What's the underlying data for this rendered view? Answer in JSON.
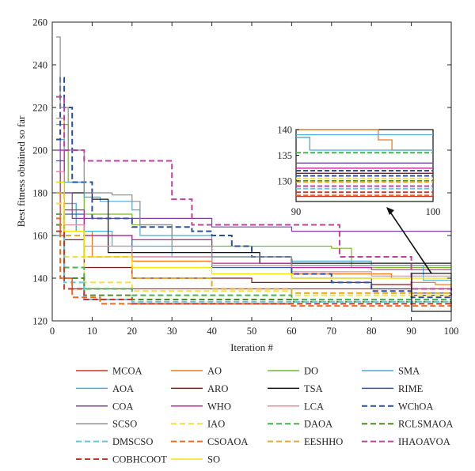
{
  "chart_data": {
    "type": "line",
    "xlabel": "Iteration #",
    "ylabel": "Best fitness obtained so far",
    "xlim": [
      0,
      100
    ],
    "ylim": [
      120,
      260
    ],
    "x_ticks": [
      "0",
      "10",
      "20",
      "30",
      "40",
      "50",
      "60",
      "70",
      "80",
      "90",
      "100"
    ],
    "y_ticks": [
      "120",
      "140",
      "160",
      "180",
      "200",
      "220",
      "240",
      "260"
    ],
    "grid": false,
    "legend_position": "bottom",
    "series": [
      {
        "name": "MCOA",
        "color": "#d7301f",
        "dash": "solid",
        "points": [
          [
            1,
            190
          ],
          [
            2,
            160
          ],
          [
            3,
            140
          ],
          [
            5,
            135
          ],
          [
            100,
            135
          ]
        ]
      },
      {
        "name": "AO",
        "color": "#f47b20",
        "dash": "solid",
        "points": [
          [
            1,
            215
          ],
          [
            3,
            175
          ],
          [
            6,
            162
          ],
          [
            10,
            150
          ],
          [
            20,
            148
          ],
          [
            40,
            146
          ],
          [
            60,
            142
          ],
          [
            85,
            140
          ],
          [
            90,
            138
          ],
          [
            96,
            137
          ],
          [
            100,
            135
          ]
        ]
      },
      {
        "name": "DO",
        "color": "#77b82a",
        "dash": "solid",
        "points": [
          [
            1,
            212
          ],
          [
            4,
            185
          ],
          [
            8,
            170
          ],
          [
            20,
            165
          ],
          [
            30,
            158
          ],
          [
            40,
            155
          ],
          [
            70,
            154
          ],
          [
            75,
            145
          ],
          [
            90,
            145
          ],
          [
            100,
            145
          ]
        ]
      },
      {
        "name": "SMA",
        "color": "#4aa8e0",
        "dash": "solid",
        "points": [
          [
            1,
            205
          ],
          [
            3,
            185
          ],
          [
            8,
            178
          ],
          [
            12,
            176
          ],
          [
            20,
            172
          ],
          [
            22,
            160
          ],
          [
            40,
            150
          ],
          [
            60,
            148
          ],
          [
            80,
            146
          ],
          [
            90,
            146
          ],
          [
            93,
            139
          ],
          [
            100,
            139
          ]
        ]
      },
      {
        "name": "AOA",
        "color": "#35b7e5",
        "dash": "solid",
        "points": [
          [
            1,
            200
          ],
          [
            3,
            175
          ],
          [
            6,
            162
          ],
          [
            15,
            155
          ],
          [
            30,
            150
          ],
          [
            60,
            146
          ],
          [
            100,
            146
          ]
        ]
      },
      {
        "name": "ARO",
        "color": "#8b1a1a",
        "dash": "solid",
        "points": [
          [
            1,
            185
          ],
          [
            3,
            158
          ],
          [
            8,
            145
          ],
          [
            20,
            140
          ],
          [
            50,
            138
          ],
          [
            80,
            137
          ],
          [
            90,
            132
          ],
          [
            100,
            132
          ]
        ]
      },
      {
        "name": "TSA",
        "color": "#111111",
        "dash": "solid",
        "points": [
          [
            1,
            180
          ],
          [
            10,
            177
          ],
          [
            14,
            152
          ],
          [
            50,
            152
          ],
          [
            52,
            147
          ],
          [
            100,
            147
          ]
        ]
      },
      {
        "name": "RIME",
        "color": "#2a5caa",
        "dash": "solid",
        "points": [
          [
            1,
            195
          ],
          [
            3,
            170
          ],
          [
            8,
            160
          ],
          [
            20,
            150
          ],
          [
            40,
            145
          ],
          [
            60,
            140
          ],
          [
            80,
            135
          ],
          [
            90,
            133
          ],
          [
            100,
            133
          ]
        ]
      },
      {
        "name": "COA",
        "color": "#7b3fa0",
        "dash": "solid",
        "points": [
          [
            1,
            205
          ],
          [
            2,
            180
          ],
          [
            5,
            168
          ],
          [
            30,
            168
          ],
          [
            40,
            164
          ],
          [
            60,
            162
          ],
          [
            100,
            162
          ]
        ]
      },
      {
        "name": "WHO",
        "color": "#c0209a",
        "dash": "solid",
        "points": [
          [
            1,
            200
          ],
          [
            3,
            172
          ],
          [
            8,
            160
          ],
          [
            20,
            158
          ],
          [
            40,
            147
          ],
          [
            60,
            145
          ],
          [
            80,
            144
          ],
          [
            100,
            144
          ]
        ]
      },
      {
        "name": "LCA",
        "color": "#e98a9a",
        "dash": "solid",
        "points": [
          [
            1,
            190
          ],
          [
            3,
            165
          ],
          [
            8,
            155
          ],
          [
            20,
            150
          ],
          [
            40,
            146
          ],
          [
            60,
            143
          ],
          [
            80,
            141
          ],
          [
            100,
            141
          ]
        ]
      },
      {
        "name": "WChOA",
        "color": "#2a4fa0",
        "dash": "dashed",
        "points": [
          [
            1,
            205
          ],
          [
            2,
            234
          ],
          [
            3,
            220
          ],
          [
            5,
            185
          ],
          [
            10,
            168
          ],
          [
            20,
            164
          ],
          [
            30,
            164
          ],
          [
            35,
            162
          ],
          [
            40,
            160
          ],
          [
            45,
            155
          ],
          [
            50,
            150
          ],
          [
            60,
            142
          ],
          [
            70,
            138
          ],
          [
            80,
            134
          ],
          [
            90,
            131
          ],
          [
            100,
            131
          ]
        ]
      },
      {
        "name": "SCSO",
        "color": "#8c8c8c",
        "dash": "solid",
        "points": [
          [
            1,
            253
          ],
          [
            2,
            220
          ],
          [
            4,
            200
          ],
          [
            8,
            180
          ],
          [
            15,
            179
          ],
          [
            20,
            176
          ],
          [
            22,
            165
          ],
          [
            30,
            155
          ],
          [
            40,
            150
          ],
          [
            60,
            146
          ],
          [
            100,
            146
          ]
        ]
      },
      {
        "name": "IAO",
        "color": "#f0e040",
        "dash": "dashed",
        "points": [
          [
            1,
            175
          ],
          [
            3,
            150
          ],
          [
            8,
            138
          ],
          [
            20,
            134
          ],
          [
            60,
            132
          ],
          [
            100,
            132
          ]
        ]
      },
      {
        "name": "DAOA",
        "color": "#4caf50",
        "dash": "dashed",
        "points": [
          [
            1,
            170
          ],
          [
            3,
            145
          ],
          [
            8,
            135
          ],
          [
            20,
            132
          ],
          [
            60,
            130
          ],
          [
            100,
            130
          ]
        ]
      },
      {
        "name": "RCLSMAOA",
        "color": "#4f8a2a",
        "dash": "dashed",
        "points": [
          [
            1,
            165
          ],
          [
            3,
            140
          ],
          [
            8,
            132
          ],
          [
            20,
            130
          ],
          [
            60,
            129
          ],
          [
            100,
            129
          ]
        ]
      },
      {
        "name": "DMSCSO",
        "color": "#5bc8e8",
        "dash": "dashed",
        "points": [
          [
            1,
            160
          ],
          [
            3,
            138
          ],
          [
            8,
            130
          ],
          [
            20,
            129
          ],
          [
            60,
            129
          ],
          [
            100,
            128
          ]
        ]
      },
      {
        "name": "CSOAOA",
        "color": "#f06a20",
        "dash": "dashed",
        "points": [
          [
            1,
            168
          ],
          [
            2,
            140
          ],
          [
            5,
            131
          ],
          [
            12,
            128
          ],
          [
            60,
            127
          ],
          [
            100,
            127
          ]
        ]
      },
      {
        "name": "EESHHO",
        "color": "#e6a830",
        "dash": "dashed",
        "points": [
          [
            1,
            180
          ],
          [
            3,
            160
          ],
          [
            8,
            150
          ],
          [
            20,
            140
          ],
          [
            40,
            135
          ],
          [
            60,
            133
          ],
          [
            100,
            133
          ]
        ]
      },
      {
        "name": "IHAOAVOA",
        "color": "#c040a0",
        "dash": "dashed",
        "points": [
          [
            1,
            225
          ],
          [
            3,
            200
          ],
          [
            8,
            195
          ],
          [
            28,
            195
          ],
          [
            30,
            177
          ],
          [
            35,
            165
          ],
          [
            70,
            165
          ],
          [
            72,
            150
          ],
          [
            90,
            135
          ],
          [
            100,
            132
          ]
        ]
      },
      {
        "name": "COBHCOOT",
        "color": "#c0392b",
        "dash": "dashed",
        "points": [
          [
            1,
            162
          ],
          [
            3,
            135
          ],
          [
            8,
            130
          ],
          [
            20,
            128
          ],
          [
            60,
            128
          ],
          [
            100,
            127
          ]
        ]
      },
      {
        "name": "SO",
        "color": "#f5e300",
        "dash": "solid",
        "points": [
          [
            1,
            185
          ],
          [
            3,
            162
          ],
          [
            8,
            150
          ],
          [
            20,
            145
          ],
          [
            40,
            142
          ],
          [
            60,
            140
          ],
          [
            100,
            139
          ]
        ]
      }
    ],
    "inset": {
      "xlim": [
        90,
        100
      ],
      "ylim": [
        126,
        140
      ],
      "x_ticks": [
        "90",
        "100"
      ],
      "y_ticks": [
        "130",
        "135",
        "140"
      ],
      "lines": [
        {
          "color": "#f47b20",
          "dash": "solid",
          "points": [
            [
              90,
              140
            ],
            [
              96,
              138
            ],
            [
              97,
              136
            ],
            [
              100,
              136
            ]
          ]
        },
        {
          "color": "#4aa8e0",
          "dash": "solid",
          "points": [
            [
              90,
              139
            ],
            [
              100,
              139
            ]
          ]
        },
        {
          "color": "#4aa8e0",
          "dash": "solid",
          "points": [
            [
              90,
              138.5
            ],
            [
              91,
              136
            ],
            [
              100,
              136
            ]
          ]
        },
        {
          "color": "#4caf50",
          "dash": "dashed",
          "points": [
            [
              90,
              135.5
            ],
            [
              100,
              135.5
            ]
          ]
        },
        {
          "color": "#7b3fa0",
          "dash": "solid",
          "points": [
            [
              90,
              133.5
            ],
            [
              100,
              133.5
            ]
          ]
        },
        {
          "color": "#c0209a",
          "dash": "solid",
          "points": [
            [
              90,
              132.5
            ],
            [
              100,
              132.5
            ]
          ]
        },
        {
          "color": "#2a4fa0",
          "dash": "dashed",
          "points": [
            [
              90,
              132
            ],
            [
              100,
              132
            ]
          ]
        },
        {
          "color": "#8b1a1a",
          "dash": "solid",
          "points": [
            [
              90,
              131.5
            ],
            [
              100,
              131.5
            ]
          ]
        },
        {
          "color": "#2a4fa0",
          "dash": "dashed",
          "points": [
            [
              90,
              131
            ],
            [
              100,
              131
            ]
          ]
        },
        {
          "color": "#f0e040",
          "dash": "dashed",
          "points": [
            [
              90,
              130.5
            ],
            [
              100,
              130.5
            ]
          ]
        },
        {
          "color": "#4f8a2a",
          "dash": "dashed",
          "points": [
            [
              90,
              130
            ],
            [
              100,
              130
            ]
          ]
        },
        {
          "color": "#e6a830",
          "dash": "dashed",
          "points": [
            [
              90,
              129.8
            ],
            [
              100,
              129.8
            ]
          ]
        },
        {
          "color": "#c040a0",
          "dash": "dashed",
          "points": [
            [
              90,
              129
            ],
            [
              100,
              129
            ]
          ]
        },
        {
          "color": "#5bc8e8",
          "dash": "dashed",
          "points": [
            [
              90,
              128.5
            ],
            [
              100,
              128.5
            ]
          ]
        },
        {
          "color": "#c0392b",
          "dash": "dashed",
          "points": [
            [
              90,
              127.8
            ],
            [
              100,
              127.8
            ]
          ]
        },
        {
          "color": "#f06a20",
          "dash": "dashed",
          "points": [
            [
              90,
              127.2
            ],
            [
              100,
              127.2
            ]
          ]
        },
        {
          "color": "#d7301f",
          "dash": "solid",
          "points": [
            [
              90,
              127
            ],
            [
              100,
              127
            ]
          ]
        }
      ]
    }
  }
}
